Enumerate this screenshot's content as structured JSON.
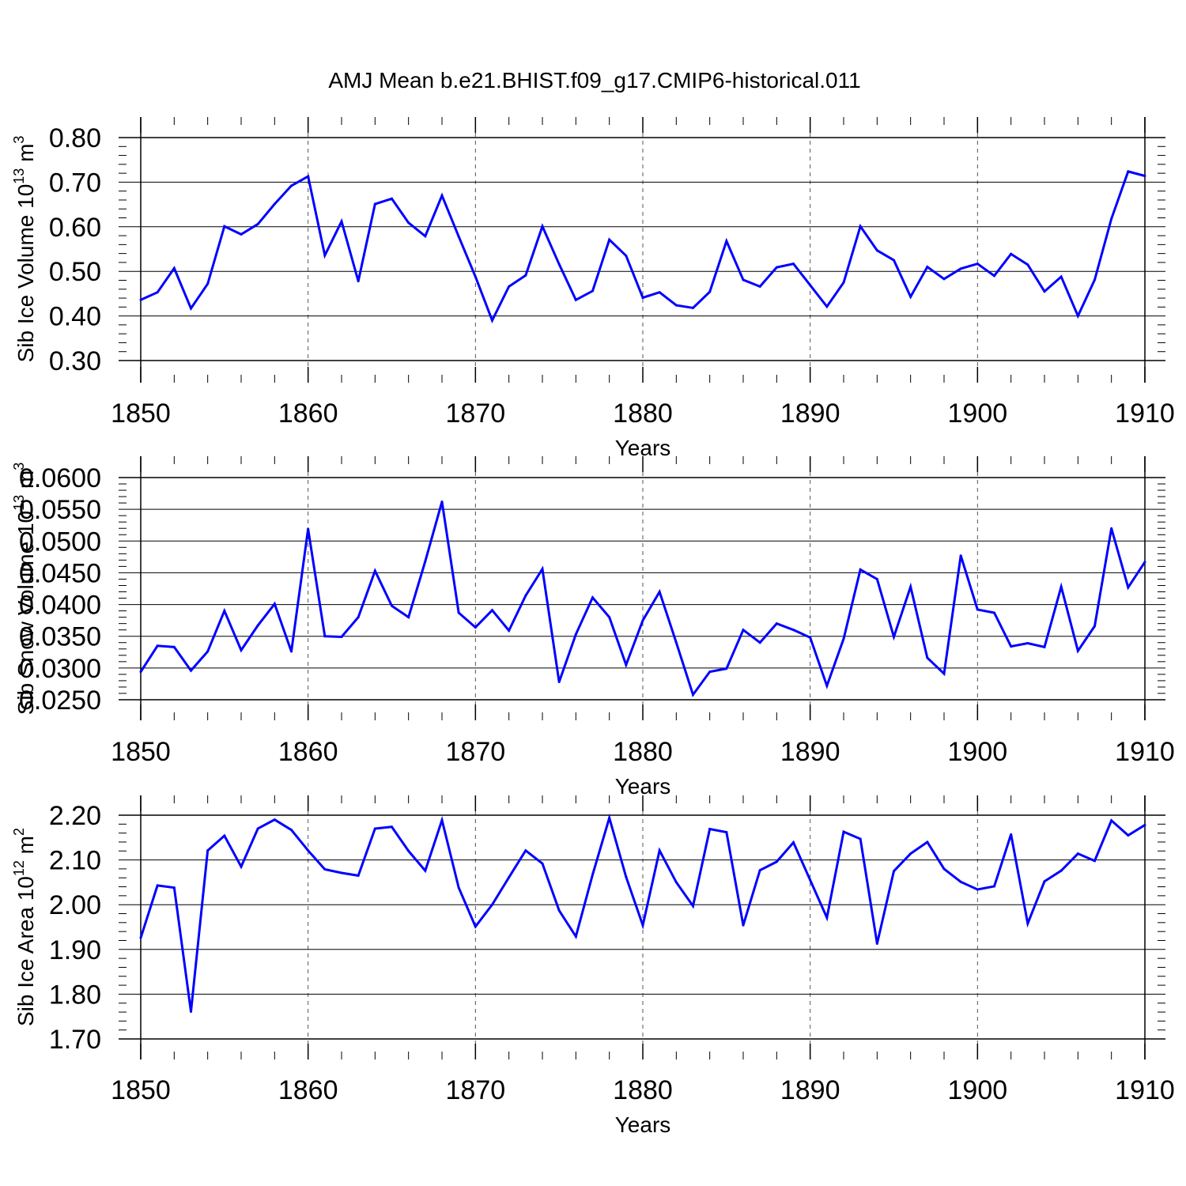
{
  "title": "AMJ Mean b.e21.BHIST.f09_g17.CMIP6-historical.011",
  "chart_data": [
    {
      "type": "line",
      "ylabel_base": "Sib Ice Volume 10",
      "ylabel_exp": "13",
      "ylabel_unit": " m",
      "ylabel_unit_exp": "3",
      "xlabel": "Years",
      "xlim": [
        1850,
        1910
      ],
      "ylim": [
        0.3,
        0.8
      ],
      "x_ticks": [
        "1850",
        "1860",
        "1870",
        "1880",
        "1890",
        "1900",
        "1910"
      ],
      "y_ticks": [
        "0.30",
        "0.40",
        "0.50",
        "0.60",
        "0.70",
        "0.80"
      ],
      "series": [
        {
          "name": "Sib Ice Volume",
          "color": "#0000ff",
          "x_start": 1850,
          "values": [
            0.436,
            0.453,
            0.507,
            0.417,
            0.472,
            0.601,
            0.583,
            0.606,
            0.651,
            0.692,
            0.713,
            0.536,
            0.612,
            0.478,
            0.651,
            0.663,
            0.609,
            0.579,
            0.67,
            0.578,
            0.488,
            0.39,
            0.466,
            0.491,
            0.601,
            0.516,
            0.436,
            0.456,
            0.571,
            0.535,
            0.441,
            0.453,
            0.424,
            0.418,
            0.454,
            0.568,
            0.481,
            0.466,
            0.509,
            0.517,
            0.469,
            0.421,
            0.475,
            0.601,
            0.547,
            0.525,
            0.443,
            0.51,
            0.483,
            0.506,
            0.517,
            0.49,
            0.539,
            0.515,
            0.455,
            0.488,
            0.4,
            0.481,
            0.618,
            0.724,
            0.714
          ]
        }
      ]
    },
    {
      "type": "line",
      "ylabel_base": "Sib Snow Volume 10",
      "ylabel_exp": "13",
      "ylabel_unit": " m",
      "ylabel_unit_exp": "3",
      "xlabel": "Years",
      "xlim": [
        1850,
        1910
      ],
      "ylim": [
        0.025,
        0.06
      ],
      "x_ticks": [
        "1850",
        "1860",
        "1870",
        "1880",
        "1890",
        "1900",
        "1910"
      ],
      "y_ticks": [
        "0.0250",
        "0.0300",
        "0.0350",
        "0.0400",
        "0.0450",
        "0.0500",
        "0.0550",
        "0.0600"
      ],
      "series": [
        {
          "name": "Sib Snow Volume",
          "color": "#0000ff",
          "x_start": 1850,
          "values": [
            0.0294,
            0.0335,
            0.0333,
            0.0296,
            0.0326,
            0.039,
            0.0328,
            0.0367,
            0.0401,
            0.0326,
            0.0519,
            0.035,
            0.0349,
            0.038,
            0.0453,
            0.0398,
            0.038,
            0.0468,
            0.0562,
            0.0387,
            0.0364,
            0.0391,
            0.0359,
            0.0414,
            0.0456,
            0.0278,
            0.0353,
            0.0411,
            0.038,
            0.0305,
            0.0375,
            0.042,
            0.034,
            0.0258,
            0.0294,
            0.0299,
            0.036,
            0.034,
            0.037,
            0.036,
            0.0348,
            0.0272,
            0.0346,
            0.0455,
            0.044,
            0.0349,
            0.0428,
            0.0316,
            0.0291,
            0.0477,
            0.0392,
            0.0387,
            0.0334,
            0.0339,
            0.0333,
            0.0428,
            0.0327,
            0.0366,
            0.052,
            0.0427,
            0.0467
          ]
        }
      ]
    },
    {
      "type": "line",
      "ylabel_base": "Sib Ice Area 10",
      "ylabel_exp": "12",
      "ylabel_unit": " m",
      "ylabel_unit_exp": "2",
      "xlabel": "Years",
      "xlim": [
        1850,
        1910
      ],
      "ylim": [
        1.7,
        2.2
      ],
      "x_ticks": [
        "1850",
        "1860",
        "1870",
        "1880",
        "1890",
        "1900",
        "1910"
      ],
      "y_ticks": [
        "1.70",
        "1.80",
        "1.90",
        "2.00",
        "2.10",
        "2.20"
      ],
      "series": [
        {
          "name": "Sib Ice Area",
          "color": "#0000ff",
          "x_start": 1850,
          "values": [
            1.926,
            2.043,
            2.038,
            1.761,
            2.121,
            2.154,
            2.085,
            2.17,
            2.19,
            2.167,
            2.121,
            2.079,
            2.071,
            2.065,
            2.17,
            2.174,
            2.12,
            2.076,
            2.189,
            2.038,
            1.951,
            2.0,
            2.061,
            2.121,
            2.092,
            1.987,
            1.929,
            2.067,
            2.194,
            2.062,
            1.954,
            2.121,
            2.05,
            1.997,
            2.169,
            2.162,
            1.954,
            2.077,
            2.096,
            2.139,
            2.055,
            1.971,
            2.163,
            2.147,
            1.913,
            2.075,
            2.114,
            2.14,
            2.08,
            2.051,
            2.034,
            2.041,
            2.157,
            1.958,
            2.052,
            2.076,
            2.114,
            2.098,
            2.188,
            2.155,
            2.178
          ]
        }
      ]
    }
  ]
}
